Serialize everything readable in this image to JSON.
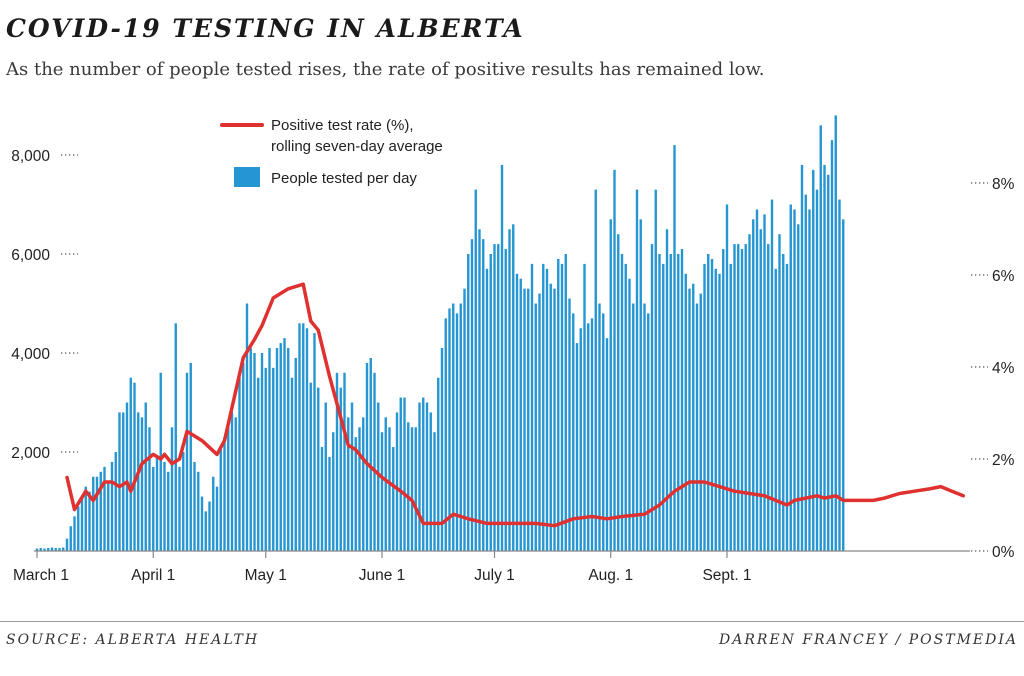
{
  "title": "COVID-19 TESTING IN ALBERTA",
  "subtitle": "As the number of people tested rises, the rate of positive results has remained low.",
  "source": "SOURCE: ALBERTA HEALTH",
  "credit": "DARREN FRANCEY / POSTMEDIA",
  "colors": {
    "bars": "#2596d1",
    "line": "#e03131",
    "axis": "#888888"
  },
  "chart_data": {
    "type": "bar+line",
    "legend": {
      "line": [
        "Positive test rate (%),",
        "rolling seven-day average"
      ],
      "bars": "People tested per day"
    },
    "x_ticks": [
      "March 1",
      "April 1",
      "May 1",
      "June 1",
      "July 1",
      "Aug. 1",
      "Sept. 1"
    ],
    "y_left": {
      "ticks": [
        "2,000",
        "4,000",
        "6,000",
        "8,000"
      ],
      "tick_values": [
        2000,
        4000,
        6000,
        8000
      ],
      "range": [
        0,
        8000
      ]
    },
    "y_right": {
      "ticks": [
        "0%",
        "2%",
        "4%",
        "6%",
        "8%"
      ],
      "tick_values": [
        0,
        2,
        4,
        6,
        8
      ],
      "range": [
        0,
        8
      ]
    },
    "series": [
      {
        "name": "People tested per day",
        "axis": "left",
        "start": "March 1",
        "values": [
          50,
          60,
          50,
          60,
          70,
          60,
          60,
          70,
          250,
          500,
          700,
          900,
          1100,
          1300,
          1200,
          1500,
          1500,
          1600,
          1700,
          1400,
          1800,
          2000,
          2800,
          2800,
          3000,
          3500,
          3400,
          2800,
          2700,
          3000,
          2500,
          1700,
          1900,
          3600,
          1800,
          1600,
          2500,
          4600,
          1700,
          2000,
          3600,
          3800,
          1800,
          1600,
          1100,
          800,
          1000,
          1500,
          1300,
          2100,
          2300,
          2600,
          2800,
          2700,
          3500,
          3800,
          5000,
          4100,
          4000,
          3500,
          4000,
          3700,
          4100,
          3700,
          4100,
          4200,
          4300,
          4100,
          3500,
          3900,
          4600,
          4600,
          4500,
          3400,
          4400,
          3300,
          2100,
          3000,
          1900,
          2400,
          3600,
          3300,
          3600,
          2700,
          3000,
          2300,
          2500,
          2700,
          3800,
          3900,
          3600,
          3000,
          2400,
          2700,
          2500,
          2100,
          2800,
          3100,
          3100,
          2600,
          2500,
          2500,
          3000,
          3100,
          3000,
          2800,
          2400,
          3500,
          4100,
          4700,
          4900,
          5000,
          4800,
          5000,
          5300,
          6000,
          6300,
          7300,
          6500,
          6300,
          5700,
          6000,
          6200,
          6200,
          7800,
          6100,
          6500,
          6600,
          5600,
          5500,
          5300,
          5300,
          5800,
          5000,
          5200,
          5800,
          5700,
          5400,
          5300,
          5900,
          5800,
          6000,
          5100,
          4800,
          4200,
          4500,
          5800,
          4600,
          4700,
          7300,
          5000,
          4800,
          4300,
          6700,
          7700,
          6400,
          6000,
          5800,
          5500,
          5000,
          7300,
          6700,
          5000,
          4800,
          6200,
          7300,
          6000,
          5800,
          6500,
          6000,
          8200,
          6000,
          6100,
          5600,
          5300,
          5400,
          5000,
          5200,
          5800,
          6000,
          5900,
          5700,
          5600,
          6100,
          7000,
          5800,
          6200,
          6200,
          6100,
          6200,
          6400,
          6700,
          6900,
          6500,
          6800,
          6200,
          7100,
          5700,
          6400,
          6000,
          5800,
          7000,
          6900,
          6600,
          7800,
          7200,
          6900,
          7700,
          7300,
          8600,
          7800,
          7600,
          8300,
          8800,
          7100,
          6700
        ]
      },
      {
        "name": "Positive test rate (%), rolling seven-day average",
        "axis": "right",
        "points": [
          [
            8,
            1.6
          ],
          [
            10,
            0.9
          ],
          [
            13,
            1.3
          ],
          [
            15,
            1.1
          ],
          [
            18,
            1.5
          ],
          [
            20,
            1.5
          ],
          [
            22,
            1.4
          ],
          [
            24,
            1.5
          ],
          [
            25,
            1.3
          ],
          [
            28,
            1.9
          ],
          [
            31,
            2.1
          ],
          [
            33,
            2.0
          ],
          [
            34,
            2.1
          ],
          [
            36,
            1.9
          ],
          [
            38,
            2.0
          ],
          [
            40,
            2.6
          ],
          [
            42,
            2.5
          ],
          [
            44,
            2.4
          ],
          [
            48,
            2.1
          ],
          [
            50,
            2.4
          ],
          [
            55,
            4.2
          ],
          [
            58,
            4.6
          ],
          [
            60,
            4.9
          ],
          [
            63,
            5.5
          ],
          [
            67,
            5.7
          ],
          [
            71,
            5.8
          ],
          [
            73,
            5.0
          ],
          [
            75,
            4.8
          ],
          [
            78,
            3.8
          ],
          [
            80,
            3.2
          ],
          [
            83,
            2.3
          ],
          [
            85,
            2.2
          ],
          [
            88,
            1.9
          ],
          [
            92,
            1.6
          ],
          [
            97,
            1.3
          ],
          [
            100,
            1.1
          ],
          [
            103,
            0.6
          ],
          [
            108,
            0.6
          ],
          [
            111,
            0.8
          ],
          [
            115,
            0.7
          ],
          [
            120,
            0.6
          ],
          [
            133,
            0.6
          ],
          [
            138,
            0.55
          ],
          [
            143,
            0.7
          ],
          [
            148,
            0.75
          ],
          [
            152,
            0.7
          ],
          [
            156,
            0.75
          ],
          [
            162,
            0.8
          ],
          [
            166,
            1.0
          ],
          [
            170,
            1.3
          ],
          [
            174,
            1.5
          ],
          [
            178,
            1.5
          ],
          [
            182,
            1.4
          ],
          [
            186,
            1.3
          ],
          [
            190,
            1.25
          ],
          [
            194,
            1.2
          ],
          [
            197,
            1.1
          ],
          [
            200,
            1.0
          ],
          [
            202,
            1.1
          ],
          [
            205,
            1.15
          ],
          [
            208,
            1.2
          ],
          [
            210,
            1.15
          ],
          [
            213,
            1.2
          ],
          [
            215,
            1.1
          ],
          [
            218,
            1.1
          ],
          [
            220,
            1.1
          ],
          [
            223,
            1.1
          ],
          [
            226,
            1.15
          ],
          [
            230,
            1.25
          ],
          [
            234,
            1.3
          ],
          [
            238,
            1.35
          ],
          [
            241,
            1.4
          ],
          [
            244,
            1.3
          ],
          [
            247,
            1.2
          ]
        ]
      }
    ]
  }
}
